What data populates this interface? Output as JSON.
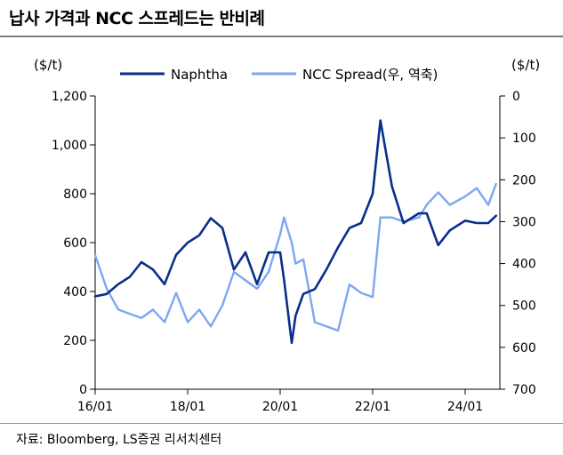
{
  "title": "납사 가격과 NCC 스프레드는 반비례",
  "source": "자료: Bloomberg, LS증권 리서치센터",
  "colors": {
    "naphtha": "#0a2e8c",
    "spread": "#7ea7f2",
    "title_rule": "#7f7f7f"
  },
  "chart_data": {
    "type": "line",
    "title": "납사 가격과 NCC 스프레드는 반비례",
    "left_axis": {
      "unit": "($/t)",
      "ylim": [
        0,
        1200
      ],
      "ticks": [
        0,
        200,
        400,
        600,
        800,
        1000,
        1200
      ],
      "tick_labels": [
        "0",
        "200",
        "400",
        "600",
        "800",
        "1,000",
        "1,200"
      ]
    },
    "right_axis": {
      "unit": "($/t)",
      "ylim": [
        700,
        0
      ],
      "inverted": true,
      "ticks": [
        0,
        100,
        200,
        300,
        400,
        500,
        600,
        700
      ],
      "tick_labels": [
        "0",
        "100",
        "200",
        "300",
        "400",
        "500",
        "600",
        "700"
      ]
    },
    "x_axis": {
      "tick_labels": [
        "16/01",
        "18/01",
        "20/01",
        "22/01",
        "24/01"
      ]
    },
    "legend_position": "top",
    "grid": false,
    "series": [
      {
        "name": "Naphtha",
        "axis": "left",
        "x": [
          "16/01",
          "16/04",
          "16/07",
          "16/10",
          "17/01",
          "17/04",
          "17/07",
          "17/10",
          "18/01",
          "18/04",
          "18/07",
          "18/10",
          "19/01",
          "19/04",
          "19/07",
          "19/10",
          "20/01",
          "20/02",
          "20/04",
          "20/05",
          "20/07",
          "20/10",
          "21/01",
          "21/04",
          "21/07",
          "21/10",
          "22/01",
          "22/03",
          "22/06",
          "22/09",
          "23/01",
          "23/03",
          "23/06",
          "23/09",
          "24/01",
          "24/04",
          "24/07",
          "24/09"
        ],
        "values": [
          380,
          390,
          430,
          460,
          520,
          490,
          430,
          550,
          600,
          630,
          700,
          660,
          490,
          560,
          430,
          560,
          560,
          450,
          190,
          300,
          390,
          410,
          490,
          580,
          660,
          680,
          800,
          1100,
          830,
          680,
          720,
          720,
          590,
          650,
          690,
          680,
          680,
          710
        ]
      },
      {
        "name": "NCC Spread(우, 역축)",
        "axis": "right",
        "x": [
          "16/01",
          "16/04",
          "16/07",
          "16/10",
          "17/01",
          "17/04",
          "17/07",
          "17/10",
          "18/01",
          "18/04",
          "18/07",
          "18/10",
          "19/01",
          "19/04",
          "19/07",
          "19/10",
          "20/01",
          "20/02",
          "20/04",
          "20/05",
          "20/07",
          "20/10",
          "21/01",
          "21/04",
          "21/07",
          "21/10",
          "22/01",
          "22/03",
          "22/06",
          "22/09",
          "23/01",
          "23/03",
          "23/06",
          "23/09",
          "24/01",
          "24/04",
          "24/07",
          "24/09"
        ],
        "values": [
          380,
          460,
          510,
          520,
          530,
          510,
          540,
          470,
          540,
          510,
          550,
          500,
          420,
          440,
          460,
          420,
          330,
          290,
          350,
          400,
          390,
          540,
          550,
          560,
          450,
          470,
          480,
          290,
          290,
          300,
          290,
          260,
          230,
          260,
          240,
          220,
          260,
          210
        ]
      }
    ]
  }
}
